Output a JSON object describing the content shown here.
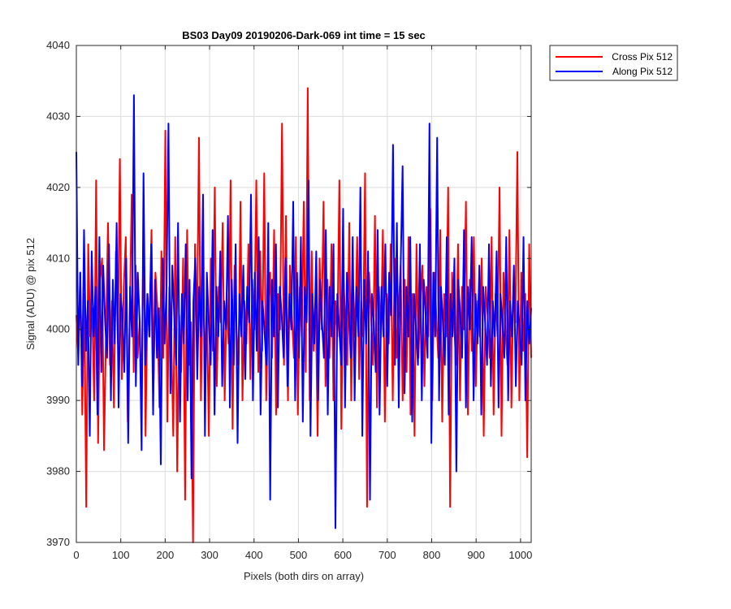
{
  "chart_data": {
    "type": "line",
    "title": "BS03 Day09 20190206-Dark-069 int time = 15 sec",
    "xlabel": "Pixels (both dirs on array)",
    "ylabel": "Signal (ADU) @ pix 512",
    "xlim": [
      0,
      1024
    ],
    "ylim": [
      3970,
      4040
    ],
    "xticks": [
      0,
      100,
      200,
      300,
      400,
      500,
      600,
      700,
      800,
      900,
      1000
    ],
    "yticks": [
      3970,
      3980,
      3990,
      4000,
      4010,
      4020,
      4030,
      4040
    ],
    "grid": true,
    "legend_position": "outside-top-right",
    "series": [
      {
        "name": "Cross Pix 512",
        "color": "#ff0000",
        "values": [
          4002,
          3996,
          4008,
          3988,
          4005,
          3975,
          4012,
          3999,
          4003,
          3990,
          4021,
          3984,
          4007,
          4010,
          3983,
          4000,
          4015,
          3995,
          4004,
          3989,
          4011,
          3998,
          4024,
          3993,
          4006,
          4013,
          3987,
          4002,
          4019,
          3994,
          4009,
          3996,
          4001,
          3990,
          4016,
          3985,
          4005,
          3999,
          4014,
          3992,
          4008,
          4003,
          3989,
          4011,
          3996,
          4028,
          3987,
          4006,
          3999,
          3985,
          4013,
          3980,
          4002,
          3994,
          4010,
          3976,
          4014,
          3995,
          4001,
          3970,
          4012,
          3999,
          4027,
          3990,
          4008,
          3995,
          4003,
          3985,
          4010,
          3997,
          4020,
          3992,
          4006,
          4001,
          4015,
          3990,
          4005,
          3998,
          4021,
          3986,
          4009,
          4000,
          3995,
          4018,
          3990,
          4004,
          3998,
          4012,
          3993,
          4007,
          4000,
          4021,
          3994,
          4011,
          3997,
          4022,
          3990,
          4003,
          4008,
          3996,
          4014,
          3988,
          4005,
          4000,
          4029,
          3995,
          4016,
          3990,
          4009,
          4002,
          3996,
          4013,
          3988,
          4006,
          3999,
          4018,
          3994,
          4034,
          3990,
          4011,
          3997,
          4005,
          3985,
          4010,
          4000,
          4018,
          3992,
          4007,
          3996,
          4012,
          3990,
          4004,
          3999,
          4021,
          3986,
          4008,
          4001,
          3995,
          4015,
          3990,
          4006,
          3999,
          4013,
          3993,
          4004,
          3999,
          4022,
          3975,
          4008,
          4002,
          3995,
          4016,
          3989,
          4006,
          3999,
          4014,
          3987,
          4005,
          3998,
          4012,
          3990,
          4010,
          3996,
          4003,
          4009,
          3990,
          4007,
          3994,
          4013,
          3988,
          4005,
          3985,
          4012,
          3996,
          4004,
          4009,
          3992,
          4006,
          3999,
          4017,
          3990,
          4008,
          4002,
          3996,
          4014,
          3987,
          4005,
          3999,
          4020,
          3975,
          4008,
          4001,
          3995,
          4012,
          3990,
          4006,
          4000,
          4018,
          3988,
          4007,
          3997,
          4013,
          3992,
          4004,
          3999,
          4010,
          3985,
          4006,
          4002,
          3996,
          4013,
          3988,
          4005,
          3999,
          4020,
          3985,
          4008,
          4000,
          3995,
          4014,
          3989,
          4006,
          4001,
          4025,
          3990,
          4008,
          3997,
          4005,
          3982,
          4012,
          3996
        ]
      },
      {
        "name": "Along Pix 512",
        "color": "#0000ff",
        "values": [
          4025,
          3995,
          4008,
          3992,
          4014,
          3997,
          4004,
          3985,
          4011,
          3999,
          4006,
          3988,
          4013,
          3994,
          4009,
          4001,
          3996,
          4012,
          3990,
          4007,
          3998,
          4015,
          3989,
          4005,
          4002,
          3994,
          4010,
          3984,
          4006,
          3999,
          4033,
          3992,
          4008,
          4001,
          3983,
          4022,
          3995,
          4005,
          3999,
          4012,
          3988,
          4007,
          3996,
          4003,
          3981,
          4010,
          3998,
          4006,
          4029,
          3991,
          4009,
          4002,
          3995,
          4015,
          3987,
          4005,
          3998,
          4012,
          3990,
          4007,
          3979,
          4004,
          4010,
          3993,
          4006,
          3999,
          4019,
          3985,
          4008,
          4001,
          3995,
          4014,
          3988,
          4006,
          3999,
          4011,
          3992,
          4004,
          4000,
          4016,
          3989,
          4007,
          3995,
          4012,
          3984,
          4005,
          3999,
          4009,
          3993,
          4006,
          4001,
          4019,
          3990,
          4008,
          3997,
          4013,
          3988,
          4004,
          4000,
          3995,
          4015,
          3976,
          4007,
          3999,
          4012,
          3989,
          4006,
          4002,
          3996,
          4010,
          3992,
          4005,
          4000,
          4018,
          3990,
          4008,
          3996,
          4013,
          3987,
          4006,
          4001,
          4021,
          3985,
          4005,
          3998,
          4011,
          3990,
          4007,
          4001,
          3996,
          4014,
          3988,
          4006,
          3999,
          4012,
          3972,
          4005,
          4000,
          3995,
          4017,
          3989,
          4008,
          4002,
          3996,
          4013,
          3990,
          4006,
          3999,
          4020,
          3985,
          4007,
          3998,
          4011,
          3976,
          4005,
          4001,
          3994,
          4014,
          3988,
          4006,
          3999,
          4012,
          3992,
          4008,
          4002,
          4026,
          3995,
          4015,
          3989,
          4009,
          4023,
          3991,
          4006,
          3999,
          4013,
          3987,
          4005,
          4000,
          3995,
          4012,
          3990,
          4007,
          4002,
          3996,
          4029,
          3984,
          4008,
          3999,
          4027,
          3990,
          4006,
          4001,
          3995,
          4013,
          3988,
          4005,
          3999,
          4010,
          3980,
          4007,
          4002,
          3996,
          4014,
          3989,
          4006,
          4000,
          4013,
          3990,
          4005,
          3998,
          4009,
          3988,
          4006,
          4001,
          3995,
          4012,
          3992,
          4004,
          3999,
          4011,
          3989,
          4005,
          4001,
          3996,
          4013,
          3990,
          4004,
          3999,
          4009,
          3992,
          4004,
          4000,
          3995,
          4013,
          3990,
          4004,
          3998,
          4003
        ]
      }
    ]
  }
}
